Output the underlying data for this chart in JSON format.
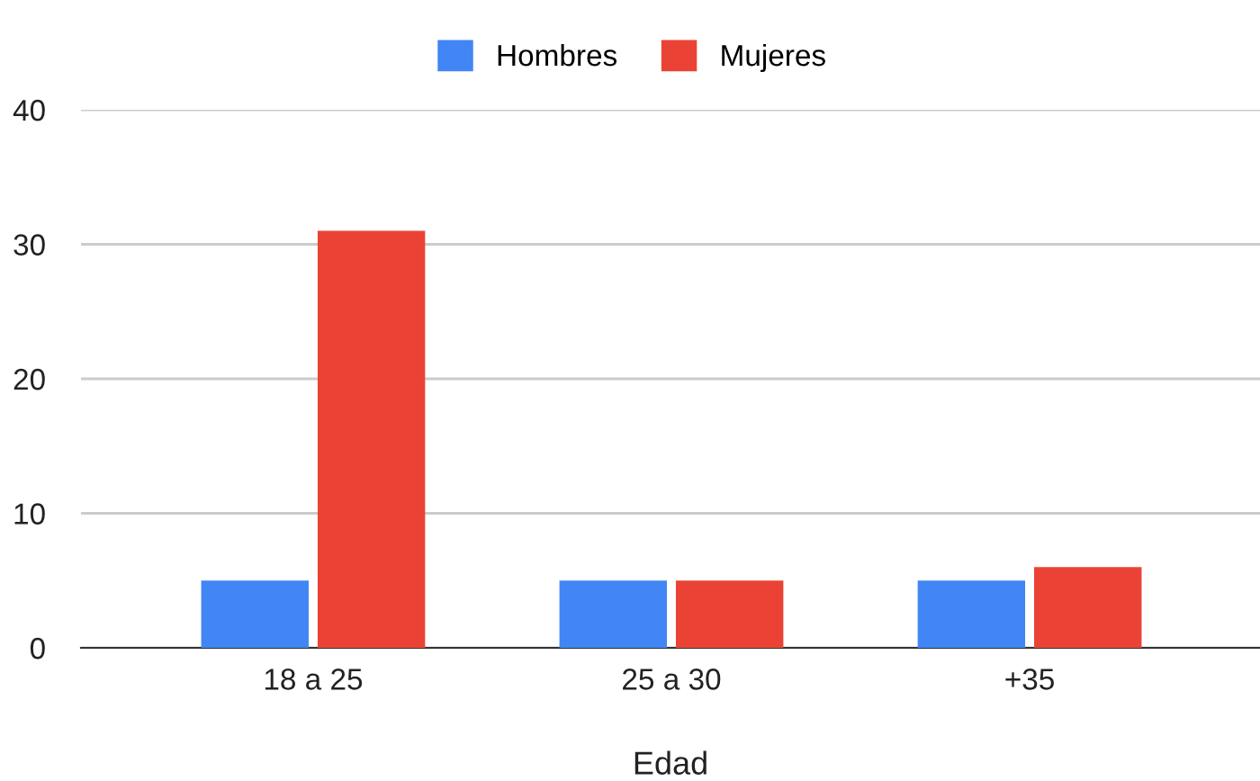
{
  "chart_data": {
    "type": "bar",
    "xlabel": "Edad",
    "categories": [
      "18 a 25",
      "25 a 30",
      "+35"
    ],
    "series": [
      {
        "name": "Hombres",
        "color": "#4285f4",
        "values": [
          5,
          5,
          5
        ]
      },
      {
        "name": "Mujeres",
        "color": "#ea4335",
        "values": [
          31,
          5,
          6
        ]
      }
    ],
    "ylim": [
      0,
      40
    ],
    "yticks": [
      0,
      10,
      20,
      30,
      40
    ],
    "grid": "y",
    "legend": "top"
  }
}
